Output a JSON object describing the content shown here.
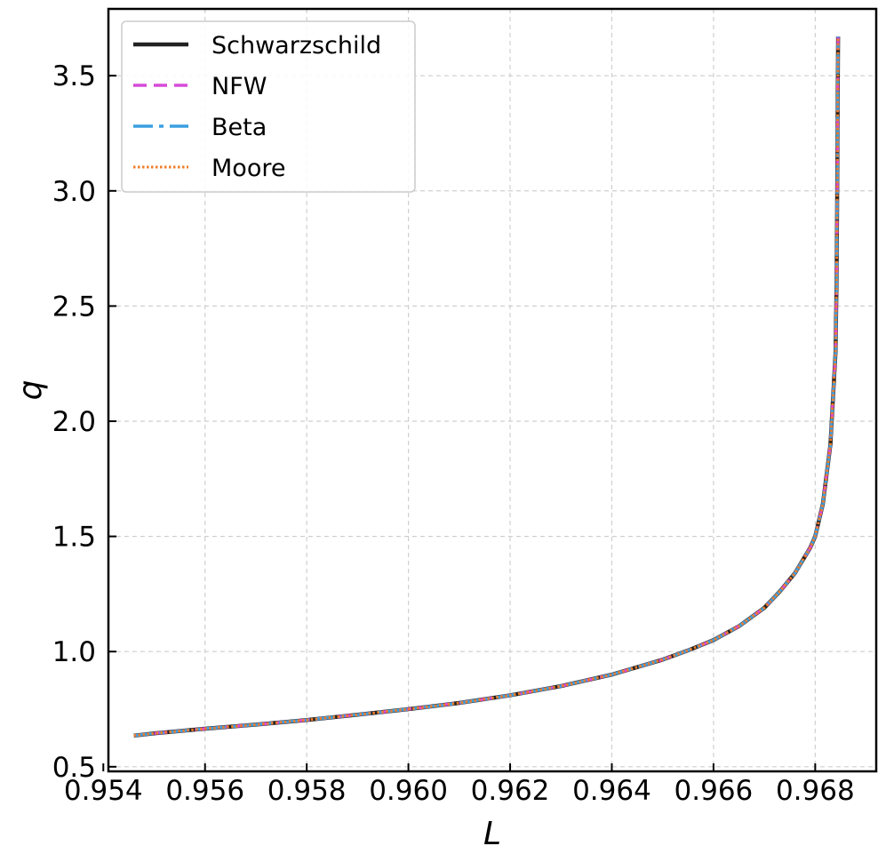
{
  "chart_data": {
    "type": "line",
    "title": "",
    "xlabel": "L",
    "ylabel": "q",
    "xlim": [
      0.9541,
      0.9692
    ],
    "ylim": [
      0.48,
      3.79
    ],
    "grid": true,
    "legend_position": "top-left",
    "x_ticks": [
      0.954,
      0.956,
      0.958,
      0.96,
      0.962,
      0.964,
      0.966,
      0.968
    ],
    "x_tick_labels": [
      "0.954",
      "0.956",
      "0.958",
      "0.960",
      "0.962",
      "0.964",
      "0.966",
      "0.968"
    ],
    "y_ticks": [
      0.5,
      1.0,
      1.5,
      2.0,
      2.5,
      3.0,
      3.5
    ],
    "y_tick_labels": [
      "0.5",
      "1.0",
      "1.5",
      "2.0",
      "2.5",
      "3.0",
      "3.5"
    ],
    "x": [
      0.9546,
      0.955,
      0.9555,
      0.956,
      0.957,
      0.958,
      0.959,
      0.96,
      0.961,
      0.962,
      0.963,
      0.964,
      0.965,
      0.9655,
      0.966,
      0.9665,
      0.967,
      0.9673,
      0.9676,
      0.9679,
      0.968,
      0.96815,
      0.9683,
      0.9684,
      0.96842,
      0.96843,
      0.96844,
      0.96845
    ],
    "series": [
      {
        "name": "Schwarzschild",
        "color": "#222222",
        "dash": "solid",
        "width": 4.5,
        "values": [
          0.635,
          0.645,
          0.655,
          0.665,
          0.683,
          0.703,
          0.726,
          0.75,
          0.777,
          0.81,
          0.85,
          0.9,
          0.965,
          1.005,
          1.05,
          1.11,
          1.19,
          1.26,
          1.34,
          1.45,
          1.5,
          1.64,
          1.9,
          2.3,
          2.6,
          2.9,
          3.3,
          3.67
        ]
      },
      {
        "name": "NFW",
        "color": "#d64ad9",
        "dash": "15,8",
        "width": 3.5,
        "values": [
          0.635,
          0.645,
          0.655,
          0.665,
          0.683,
          0.703,
          0.726,
          0.75,
          0.777,
          0.81,
          0.85,
          0.9,
          0.965,
          1.005,
          1.05,
          1.11,
          1.19,
          1.26,
          1.34,
          1.45,
          1.5,
          1.64,
          1.9,
          2.3,
          2.6,
          2.9,
          3.3,
          3.67
        ]
      },
      {
        "name": "Beta",
        "color": "#3a9fe0",
        "dash": "22,7,5,7",
        "width": 3.5,
        "values": [
          0.635,
          0.645,
          0.655,
          0.665,
          0.683,
          0.703,
          0.726,
          0.75,
          0.777,
          0.81,
          0.85,
          0.9,
          0.965,
          1.005,
          1.05,
          1.11,
          1.19,
          1.26,
          1.34,
          1.45,
          1.5,
          1.64,
          1.9,
          2.3,
          2.6,
          2.9,
          3.3,
          3.67
        ]
      },
      {
        "name": "Moore",
        "color": "#f07d2a",
        "dash": "2.5,2.5",
        "width": 3,
        "values": [
          0.635,
          0.645,
          0.655,
          0.665,
          0.683,
          0.703,
          0.726,
          0.75,
          0.777,
          0.81,
          0.85,
          0.9,
          0.965,
          1.005,
          1.05,
          1.11,
          1.19,
          1.26,
          1.34,
          1.45,
          1.5,
          1.64,
          1.9,
          2.3,
          2.6,
          2.9,
          3.3,
          3.67
        ]
      }
    ]
  }
}
